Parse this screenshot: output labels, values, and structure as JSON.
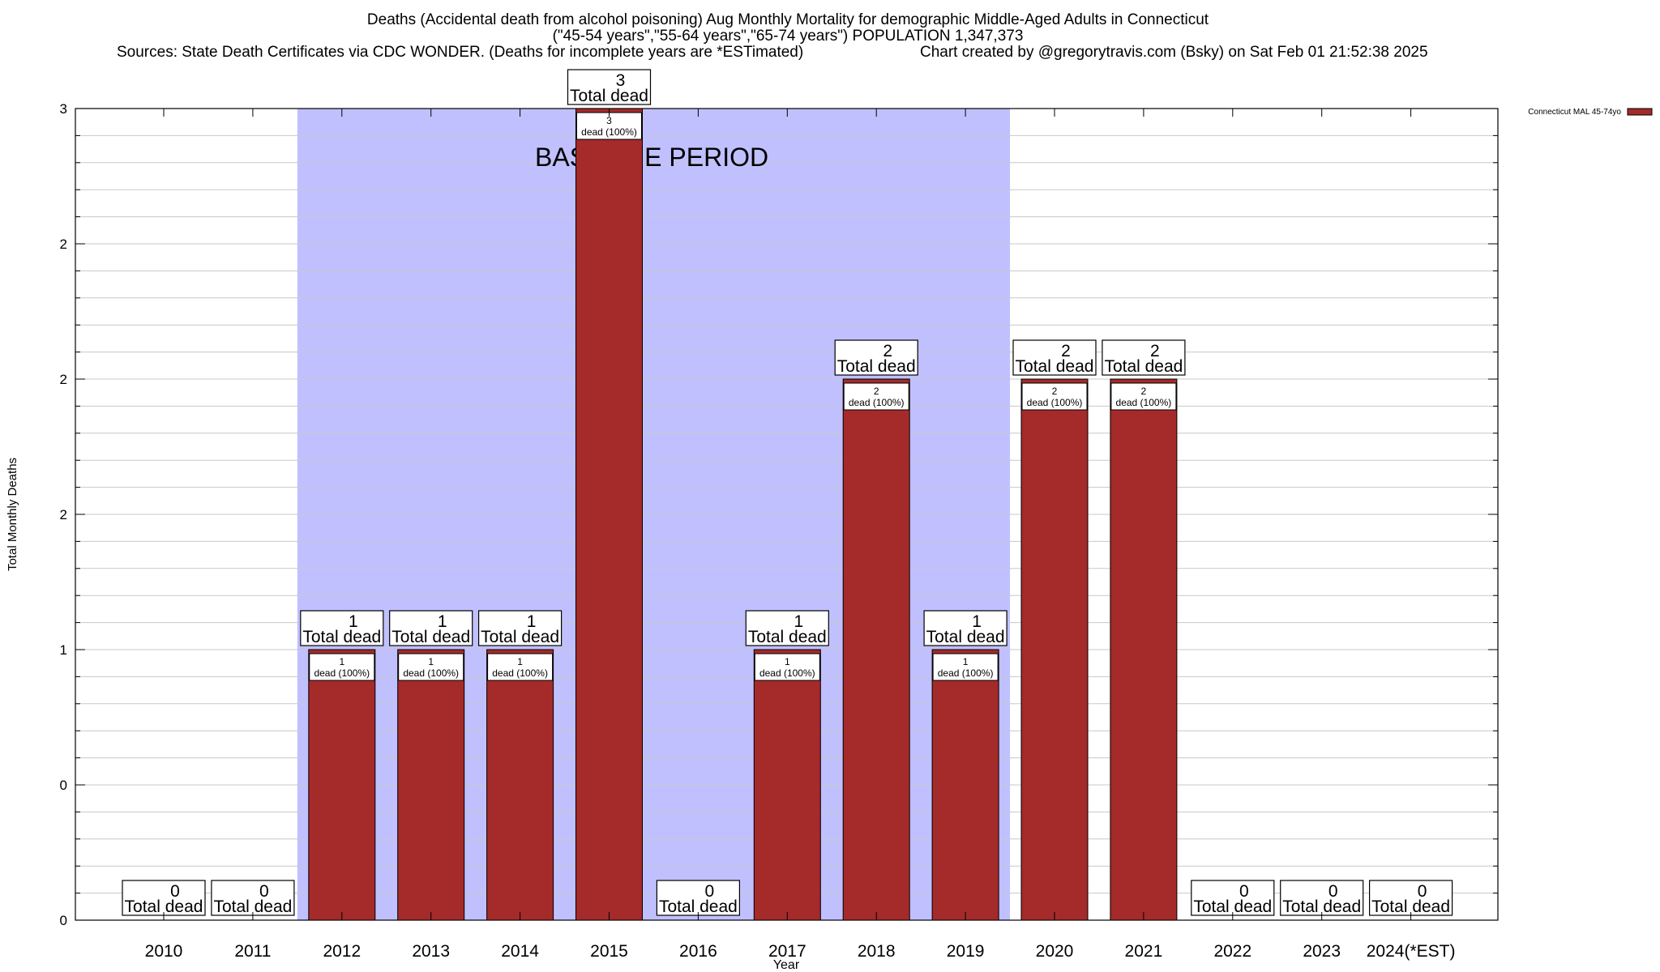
{
  "chart_data": {
    "type": "bar",
    "title": "Deaths (Accidental death from alcohol poisoning) Aug Monthly Mortality for demographic Middle-Aged Adults in Connecticut",
    "subtitle": "(\"45-54 years\",\"55-64 years\",\"65-74 years\") POPULATION 1,347,373",
    "sources": "Sources: State Death Certificates via CDC WONDER. (Deaths for incomplete years are *ESTimated)",
    "credit": "Chart created by @gregorytravis.com (Bsky) on Sat Feb 01 21:52:38 2025",
    "xlabel": "Year",
    "ylabel": "Total Monthly Deaths",
    "categories": [
      "2010",
      "2011",
      "2012",
      "2013",
      "2014",
      "2015",
      "2016",
      "2017",
      "2018",
      "2019",
      "2020",
      "2021",
      "2022",
      "2023",
      "2024(*EST)"
    ],
    "series": [
      {
        "name": "Connecticut MAL 45-74yo",
        "color": "#a52a2a",
        "values": [
          0,
          0,
          1,
          1,
          1,
          3,
          0,
          1,
          2,
          1,
          2,
          2,
          0,
          0,
          0
        ]
      }
    ],
    "ylim": [
      0,
      3
    ],
    "y_ticks": [
      {
        "value": 0,
        "label": "0"
      },
      {
        "value": 0.5,
        "label": "0"
      },
      {
        "value": 1,
        "label": "1"
      },
      {
        "value": 1.5,
        "label": "2"
      },
      {
        "value": 2,
        "label": "2"
      },
      {
        "value": 2.5,
        "label": "2"
      },
      {
        "value": 3,
        "label": "3"
      }
    ],
    "total_label_suffix": "Total dead",
    "inner_label_suffix": "dead (100%)",
    "baseline": {
      "label": "BASELINE PERIOD",
      "from": "2012",
      "to": "2019",
      "color": "#c0c0ff"
    },
    "grid": true,
    "legend_position": "top-right"
  }
}
